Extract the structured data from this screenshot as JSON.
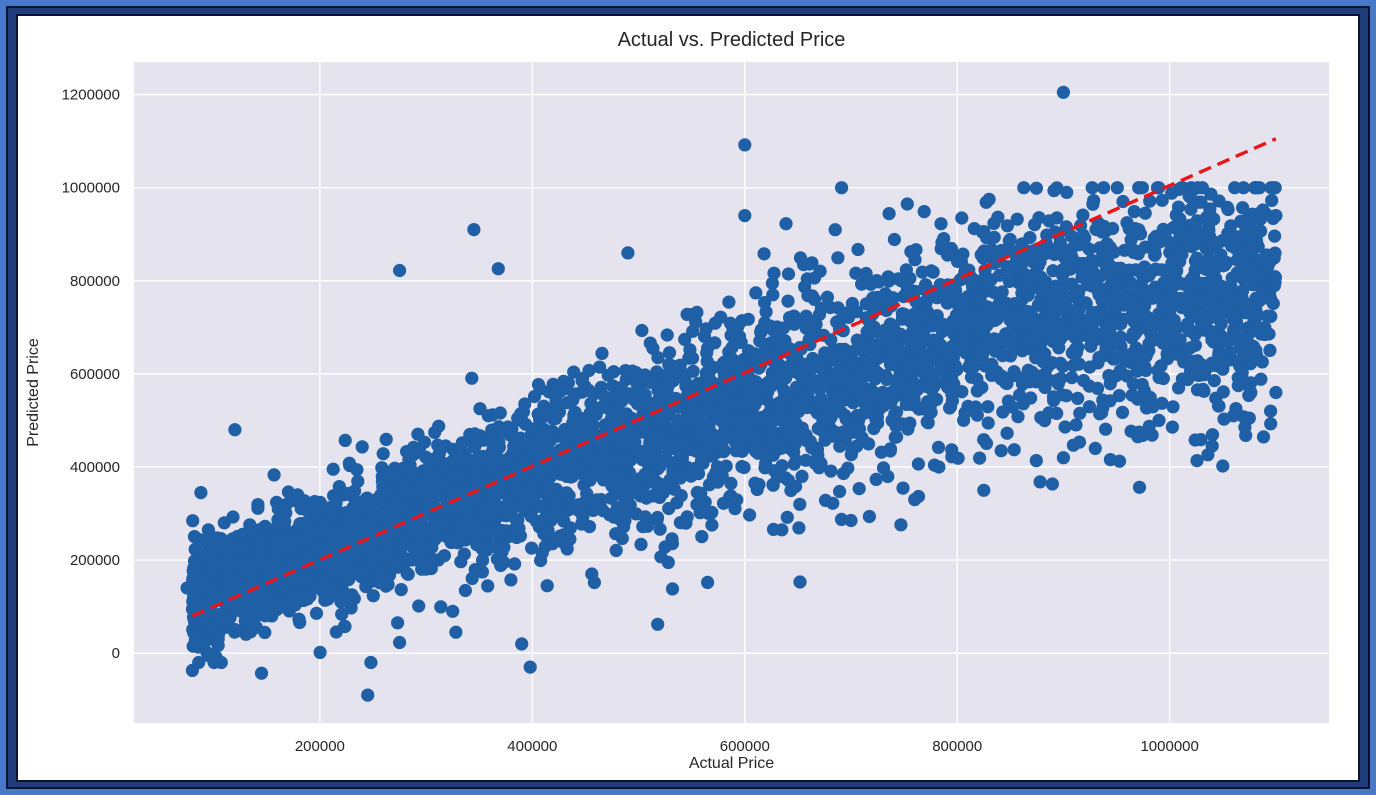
{
  "chart_data": {
    "type": "scatter",
    "title": "Actual vs. Predicted Price",
    "xlabel": "Actual Price",
    "ylabel": "Predicted Price",
    "xlim": [
      25000,
      1150000
    ],
    "ylim": [
      -150000,
      1270000
    ],
    "x_ticks": [
      200000,
      400000,
      600000,
      800000,
      1000000
    ],
    "y_ticks": [
      0,
      200000,
      400000,
      600000,
      800000,
      1000000,
      1200000
    ],
    "x_tick_labels": [
      "200000",
      "400000",
      "600000",
      "800000",
      "1000000"
    ],
    "y_tick_labels": [
      "0",
      "200000",
      "400000",
      "600000",
      "800000",
      "1000000",
      "1200000"
    ],
    "grid": true,
    "reference_line": {
      "style": "dashed",
      "color": "#e8151b",
      "x": [
        80000,
        1100000
      ],
      "y": [
        80000,
        1105000
      ]
    },
    "series": [
      {
        "color": "#1f5fa5",
        "points": [
          [
            900000,
            1205000
          ],
          [
            600000,
            1092000
          ],
          [
            345000,
            910000
          ],
          [
            600000,
            940000
          ],
          [
            753000,
            965000
          ],
          [
            830000,
            975000
          ],
          [
            1100000,
            940000
          ],
          [
            275000,
            822000
          ],
          [
            368000,
            826000
          ],
          [
            490000,
            860000
          ],
          [
            120000,
            480000
          ],
          [
            88000,
            345000
          ],
          [
            95000,
            265000
          ],
          [
            110000,
            280000
          ],
          [
            85000,
            160000
          ],
          [
            75000,
            140000
          ],
          [
            80000,
            -37000
          ],
          [
            145000,
            -43000
          ],
          [
            248000,
            -20000
          ],
          [
            245000,
            -90000
          ],
          [
            390000,
            20000
          ],
          [
            398000,
            -30000
          ],
          [
            518000,
            62000
          ],
          [
            565000,
            152000
          ],
          [
            652000,
            153000
          ],
          [
            532000,
            138000
          ],
          [
            528000,
            195000
          ],
          [
            525000,
            228000
          ],
          [
            414000,
            145000
          ],
          [
            328000,
            45000
          ],
          [
            325000,
            90000
          ],
          [
            456000,
            170000
          ],
          [
            700000,
            285000
          ],
          [
            1050000,
            402000
          ],
          [
            1040000,
            445000
          ],
          [
            1095000,
            520000
          ],
          [
            1075000,
            505000
          ],
          [
            1060000,
            510000
          ],
          [
            1050000,
            610000
          ],
          [
            1100000,
            560000
          ],
          [
            878000,
            368000
          ],
          [
            825000,
            350000
          ],
          [
            900000,
            420000
          ],
          [
            930000,
            440000
          ],
          [
            990000,
            500000
          ],
          [
            970000,
            465000
          ],
          [
            760000,
            330000
          ],
          [
            640000,
            292000
          ],
          [
            627000,
            266000
          ],
          [
            580000,
            322000
          ]
        ]
      }
    ]
  }
}
